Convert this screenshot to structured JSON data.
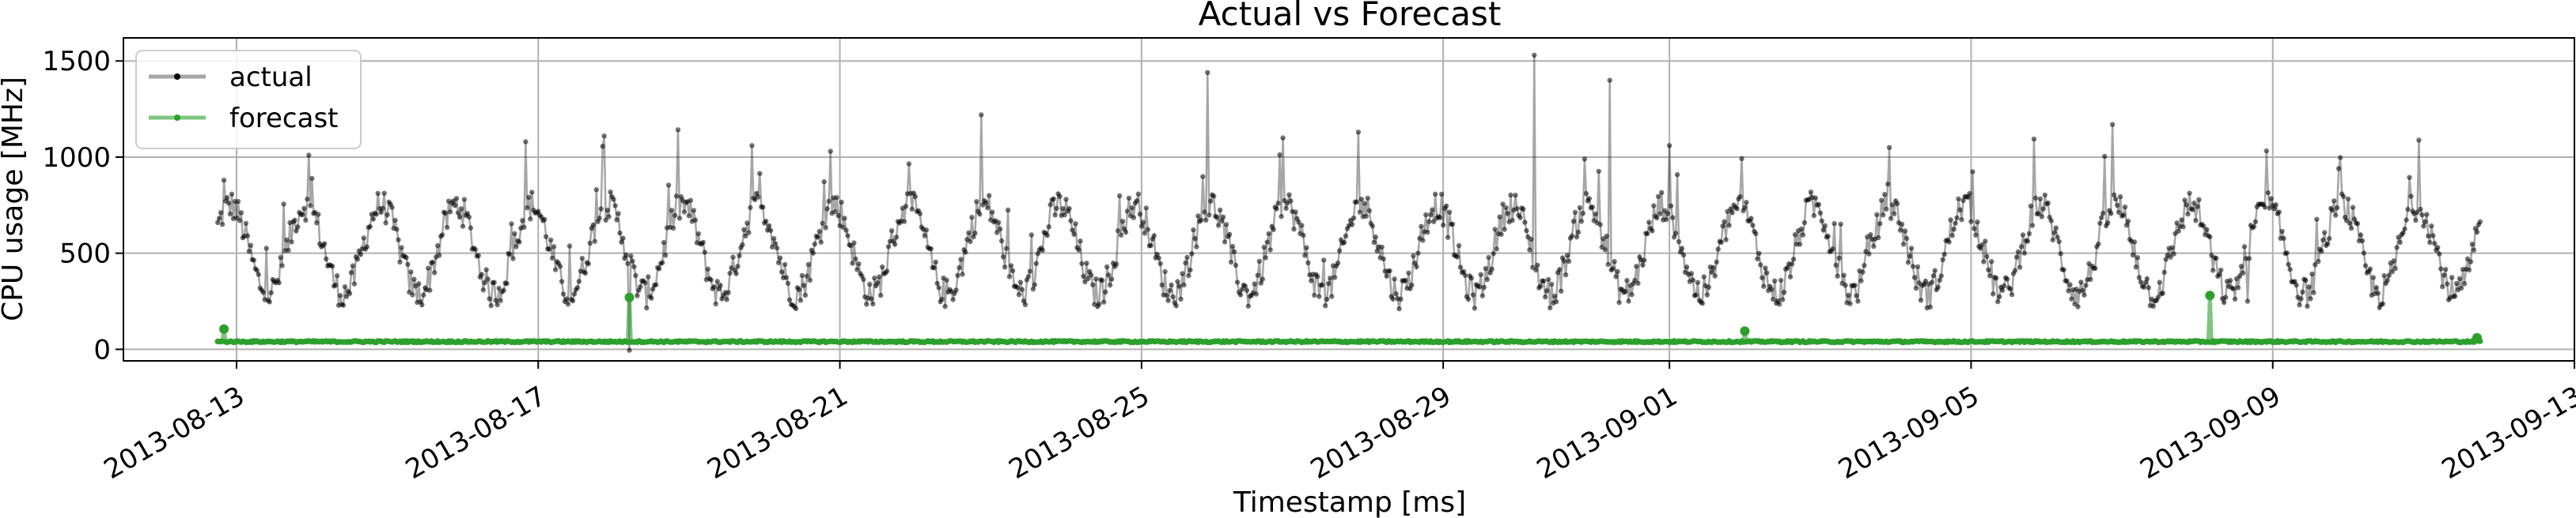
{
  "chart_data": {
    "type": "line",
    "title": "Actual vs Forecast",
    "xlabel": "Timestamp [ms]",
    "ylabel": "CPU usage [MHz]",
    "xlim": [
      "2013-08-11T12:00",
      "2013-09-13T00:00"
    ],
    "ylim": [
      -60,
      1620
    ],
    "x_ticks": [
      "2013-08-13",
      "2013-08-17",
      "2013-08-21",
      "2013-08-25",
      "2013-08-29",
      "2013-09-01",
      "2013-09-05",
      "2013-09-09",
      "2013-09-13"
    ],
    "y_ticks": [
      0,
      500,
      1000,
      1500
    ],
    "y_tick_labels": [
      "0",
      "500",
      "1000",
      "1500"
    ],
    "grid": true,
    "legend_position": "top-left",
    "x_range": [
      "2013-08-12T18:00",
      "2013-09-11T18:00"
    ],
    "series": [
      {
        "name": "actual",
        "color": "#000000",
        "base_level_mhz": 520,
        "daily_amplitude_mhz": 230,
        "typical_range_mhz": [
          200,
          1000
        ],
        "notable_points": [
          {
            "x": "2013-08-12T20:00",
            "y": 880
          },
          {
            "x": "2013-08-13T23:00",
            "y": 1010
          },
          {
            "x": "2013-08-16T20:00",
            "y": 1080
          },
          {
            "x": "2013-08-17T21:00",
            "y": 1110
          },
          {
            "x": "2013-08-18T05:00",
            "y": -5
          },
          {
            "x": "2013-08-19T20:00",
            "y": 1060
          },
          {
            "x": "2013-08-20T21:00",
            "y": 1030
          },
          {
            "x": "2013-08-22T21:00",
            "y": 1220
          },
          {
            "x": "2013-08-25T21:00",
            "y": 1440
          },
          {
            "x": "2013-08-26T21:00",
            "y": 1100
          },
          {
            "x": "2013-08-27T21:00",
            "y": 1130
          },
          {
            "x": "2013-08-30T05:00",
            "y": 1530
          },
          {
            "x": "2013-08-30T21:00",
            "y": 990
          },
          {
            "x": "2013-08-31T05:00",
            "y": 1400
          },
          {
            "x": "2013-09-01T00:00",
            "y": 1060
          },
          {
            "x": "2013-09-03T22:00",
            "y": 1050
          },
          {
            "x": "2013-09-06T21:00",
            "y": 1170
          },
          {
            "x": "2013-09-08T16:00",
            "y": 250
          }
        ]
      },
      {
        "name": "forecast",
        "color": "#2ca02c",
        "baseline_mhz": 40,
        "start_value_mhz": 105,
        "notable_points": [
          {
            "x": "2013-08-12T20:00",
            "y": 105
          },
          {
            "x": "2013-08-18T05:00",
            "y": 270
          },
          {
            "x": "2013-09-02T00:00",
            "y": 95
          },
          {
            "x": "2013-09-08T04:00",
            "y": 280
          },
          {
            "x": "2013-09-11T17:00",
            "y": 60
          }
        ]
      }
    ]
  }
}
